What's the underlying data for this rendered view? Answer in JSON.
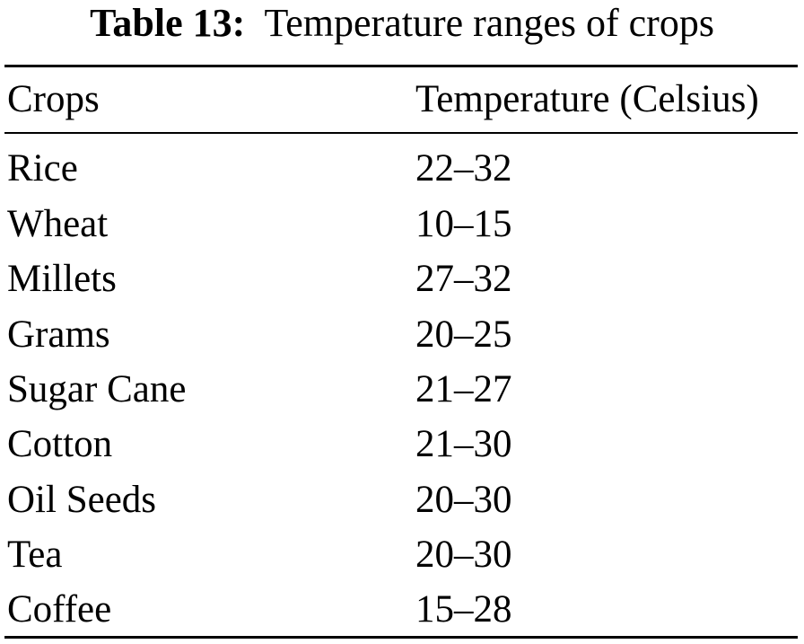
{
  "table": {
    "caption_label": "Table 13:",
    "caption_text": "Temperature ranges of crops",
    "columns": [
      "Crops",
      "Temperature (Celsius)"
    ],
    "rows": [
      [
        "Rice",
        "22–32"
      ],
      [
        "Wheat",
        "10–15"
      ],
      [
        "Millets",
        "27–32"
      ],
      [
        "Grams",
        "20–25"
      ],
      [
        "Sugar Cane",
        "21–27"
      ],
      [
        "Cotton",
        "21–30"
      ],
      [
        "Oil Seeds",
        "20–30"
      ],
      [
        "Tea",
        "20–30"
      ],
      [
        "Coffee",
        "15–28"
      ]
    ]
  }
}
